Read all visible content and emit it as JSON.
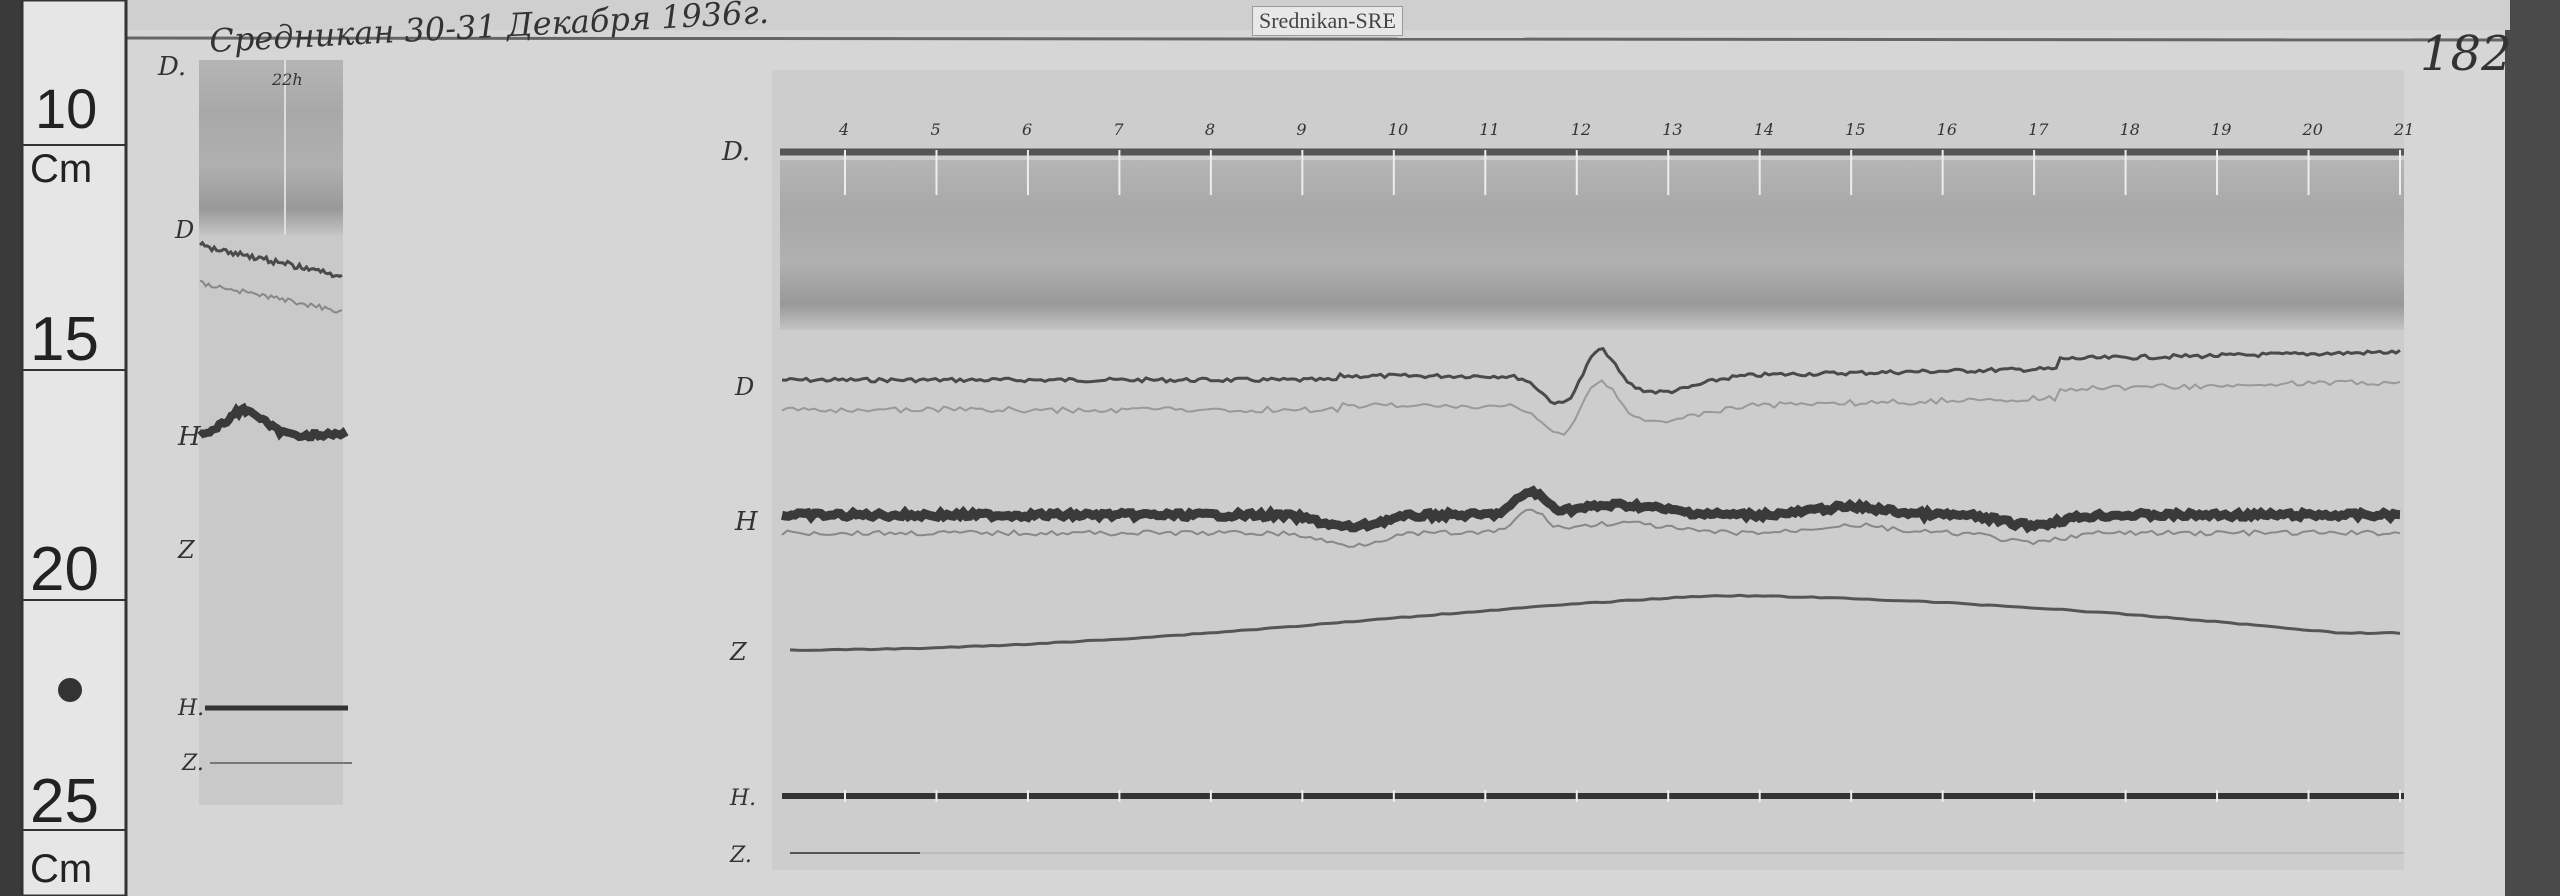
{
  "station_label": "Srednikan-SRE",
  "page_number": "182",
  "header_handwriting": "Средникан 30-31 Декабря 1936г.",
  "left_strip_time_mark": "22h",
  "ruler": {
    "labels": [
      "10",
      "Cm",
      "15",
      "20",
      "25",
      "Cm"
    ]
  },
  "trace_labels": {
    "D0": "D.",
    "D": "D",
    "H": "H",
    "Z": "Z",
    "H0": "H.",
    "Z0": "Z."
  },
  "hour_marks": [
    "4",
    "5",
    "6",
    "7",
    "8",
    "9",
    "10",
    "11",
    "12",
    "13",
    "14",
    "15",
    "16",
    "17",
    "18",
    "19",
    "20",
    "21"
  ],
  "colors": {
    "paper": "#d9d9d9",
    "trace": "#4a4a4a",
    "band_dark": "#9a9a9a"
  }
}
